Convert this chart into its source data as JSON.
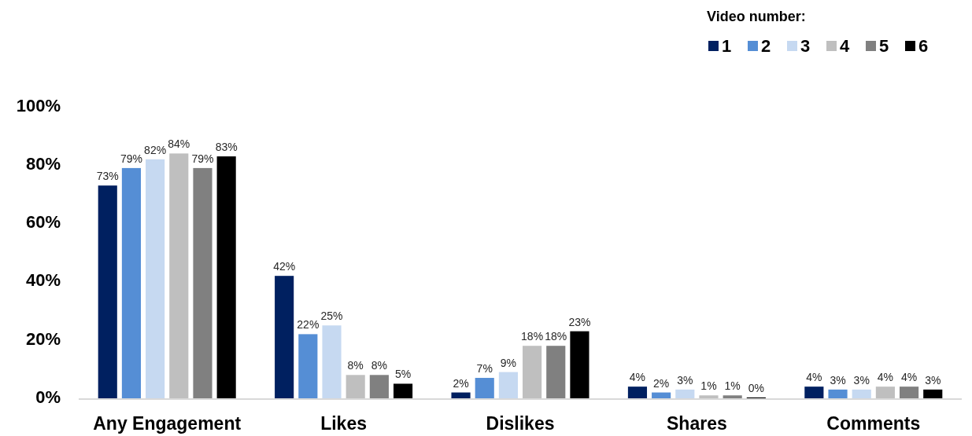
{
  "chart_data": {
    "type": "bar",
    "categories": [
      "Any Engagement",
      "Likes",
      "Dislikes",
      "Shares",
      "Comments"
    ],
    "series": [
      {
        "name": "1",
        "color": "#002060",
        "values": [
          73,
          42,
          2,
          4,
          4
        ],
        "value_labels": [
          "73%",
          "42%",
          "2%",
          "4%",
          "4%"
        ]
      },
      {
        "name": "2",
        "color": "#558ed5",
        "values": [
          79,
          22,
          7,
          2,
          3
        ],
        "value_labels": [
          "79%",
          "22%",
          "7%",
          "2%",
          "3%"
        ]
      },
      {
        "name": "3",
        "color": "#c6d9f1",
        "values": [
          82,
          25,
          9,
          3,
          3
        ],
        "value_labels": [
          "82%",
          "25%",
          "9%",
          "3%",
          "3%"
        ]
      },
      {
        "name": "4",
        "color": "#bfbfbf",
        "values": [
          84,
          8,
          18,
          1,
          4
        ],
        "value_labels": [
          "84%",
          "8%",
          "18%",
          "1%",
          "4%"
        ]
      },
      {
        "name": "5",
        "color": "#808080",
        "values": [
          79,
          8,
          18,
          1,
          4
        ],
        "value_labels": [
          "79%",
          "8%",
          "18%",
          "1%",
          "4%"
        ]
      },
      {
        "name": "6",
        "color": "#000000",
        "values": [
          83,
          5,
          23,
          0.3,
          3
        ],
        "value_labels": [
          "83%",
          "5%",
          "23%",
          "0%",
          "3%"
        ]
      }
    ],
    "legend_title": "Video number:",
    "legend": "top right",
    "ylim": [
      0,
      100
    ],
    "yticks": [
      {
        "value": 0,
        "label": "0%"
      },
      {
        "value": 20,
        "label": "20%"
      },
      {
        "value": 40,
        "label": "40%"
      },
      {
        "value": 60,
        "label": "60%"
      },
      {
        "value": 80,
        "label": "80%"
      },
      {
        "value": 100,
        "label": "100%"
      }
    ]
  }
}
